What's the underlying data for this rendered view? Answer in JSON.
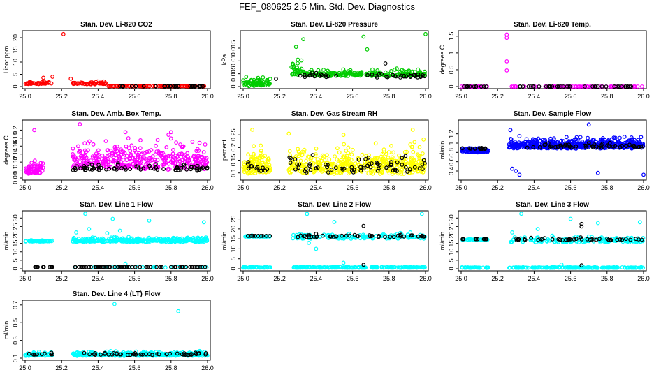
{
  "page_title": "FEF_080625  2.5 Min. Std. Dev. Diagnostics",
  "colors": {
    "red": "#ff0000",
    "green": "#00cc00",
    "magenta": "#ff00ff",
    "yellow": "#ffff00",
    "blue": "#0000ff",
    "cyan": "#00ffff",
    "black": "#000000"
  },
  "chart_data": [
    {
      "type": "scatter",
      "title": "Stan. Dev. Li-820 CO2",
      "ylabel": "Licor ppm",
      "xlim": [
        25.0,
        26.0
      ],
      "ylim": [
        0,
        22
      ],
      "xticks": [
        25.0,
        25.2,
        25.4,
        25.6,
        25.8,
        26.0
      ],
      "yticks": [
        0,
        5,
        10,
        15,
        20
      ],
      "series": [
        {
          "color": "#ff0000",
          "segments": [
            {
              "x0": 25.0,
              "x1": 25.15,
              "n": 40,
              "base": 1.0,
              "spread": 1.4
            },
            {
              "x0": 25.26,
              "x1": 25.45,
              "n": 45,
              "base": 0.9,
              "spread": 1.3
            },
            {
              "x0": 25.45,
              "x1": 26.0,
              "n": 110,
              "base": 0.1,
              "spread": 0.25
            }
          ],
          "points": [
            [
              25.21,
              21.5
            ],
            [
              25.25,
              3.2
            ],
            [
              25.15,
              4.0
            ],
            [
              25.1,
              3.6
            ]
          ]
        },
        {
          "color": "#000000",
          "segments": [
            {
              "x0": 25.5,
              "x1": 26.0,
              "n": 30,
              "base": 0.1,
              "spread": 0.1
            }
          ],
          "points": []
        }
      ]
    },
    {
      "type": "scatter",
      "title": "Stan. Dev. Li-820 Pressure",
      "ylabel": "kPa",
      "xlim": [
        25.0,
        26.0
      ],
      "ylim": [
        0,
        0.021
      ],
      "xticks": [
        25.0,
        25.2,
        25.4,
        25.6,
        25.8,
        26.0
      ],
      "yticks": [
        0.0,
        0.005,
        0.01,
        0.015
      ],
      "series": [
        {
          "color": "#00cc00",
          "segments": [
            {
              "x0": 25.0,
              "x1": 25.15,
              "n": 70,
              "base": 0.0,
              "spread": 0.005
            },
            {
              "x0": 25.26,
              "x1": 25.32,
              "n": 30,
              "base": 0.004,
              "spread": 0.008
            },
            {
              "x0": 25.32,
              "x1": 26.0,
              "n": 220,
              "base": 0.004,
              "spread": 0.0035
            }
          ],
          "points": [
            [
              26.0,
              0.0205
            ],
            [
              25.66,
              0.0195
            ],
            [
              25.33,
              0.0185
            ],
            [
              25.68,
              0.0145
            ],
            [
              25.29,
              0.0155
            ],
            [
              25.3,
              0.0105
            ]
          ]
        },
        {
          "color": "#000000",
          "segments": [
            {
              "x0": 25.3,
              "x1": 26.0,
              "n": 45,
              "base": 0.0035,
              "spread": 0.0025
            }
          ],
          "points": [
            [
              25.78,
              0.009
            ],
            [
              25.18,
              0.003
            ]
          ]
        }
      ]
    },
    {
      "type": "scatter",
      "title": "Stan. Dev. Li-820 Temp.",
      "ylabel": "degrees C",
      "xlim": [
        25.0,
        26.0
      ],
      "ylim": [
        0,
        1.6
      ],
      "xticks": [
        25.0,
        25.2,
        25.4,
        25.6,
        25.8,
        26.0
      ],
      "yticks": [
        0.0,
        0.5,
        1.0,
        1.5
      ],
      "series": [
        {
          "color": "#ff00ff",
          "segments": [
            {
              "x0": 25.0,
              "x1": 25.15,
              "n": 25,
              "base": 0.0,
              "spread": 0.0
            },
            {
              "x0": 25.27,
              "x1": 26.0,
              "n": 70,
              "base": 0.0,
              "spread": 0.0
            }
          ],
          "points": [
            [
              25.25,
              1.55
            ],
            [
              25.25,
              1.45
            ],
            [
              25.25,
              0.75
            ],
            [
              25.25,
              0.48
            ]
          ]
        },
        {
          "color": "#000000",
          "segments": [
            {
              "x0": 25.0,
              "x1": 25.15,
              "n": 12,
              "base": 0.0,
              "spread": 0.0
            },
            {
              "x0": 25.3,
              "x1": 26.0,
              "n": 40,
              "base": 0.0,
              "spread": 0.0
            }
          ],
          "points": []
        }
      ]
    },
    {
      "type": "scatter",
      "title": "Stan. Dev. Amb. Box Temp.",
      "ylabel": "degrees C",
      "xlim": [
        25.0,
        26.0
      ],
      "ylim": [
        0.08,
        0.22
      ],
      "xticks": [
        25.0,
        25.2,
        25.4,
        25.6,
        25.8,
        26.0
      ],
      "yticks": [
        0.08,
        0.1,
        0.12,
        0.14,
        0.16,
        0.18,
        0.2
      ],
      "series": [
        {
          "color": "#ff00ff",
          "segments": [
            {
              "x0": 25.0,
              "x1": 25.1,
              "n": 70,
              "base": 0.09,
              "spread": 0.045
            },
            {
              "x0": 25.26,
              "x1": 26.0,
              "n": 380,
              "base": 0.1,
              "spread": 0.095
            }
          ],
          "points": [
            [
              25.05,
              0.2
            ],
            [
              25.3,
              0.215
            ],
            [
              25.55,
              0.195
            ],
            [
              25.8,
              0.195
            ]
          ]
        },
        {
          "color": "#000000",
          "segments": [
            {
              "x0": 25.26,
              "x1": 26.0,
              "n": 75,
              "base": 0.098,
              "spread": 0.022
            }
          ],
          "points": []
        }
      ]
    },
    {
      "type": "scatter",
      "title": "Stan. Dev. Gas Stream RH",
      "ylabel": "percent",
      "xlim": [
        25.0,
        26.0
      ],
      "ylim": [
        0.08,
        0.3
      ],
      "xticks": [
        25.0,
        25.2,
        25.4,
        25.6,
        25.8,
        26.0
      ],
      "yticks": [
        0.1,
        0.15,
        0.2,
        0.25
      ],
      "series": [
        {
          "color": "#ffff00",
          "segments": [
            {
              "x0": 25.0,
              "x1": 25.15,
              "n": 120,
              "base": 0.095,
              "spread": 0.13
            },
            {
              "x0": 25.25,
              "x1": 26.0,
              "n": 450,
              "base": 0.095,
              "spread": 0.14
            }
          ],
          "points": [
            [
              25.05,
              0.27
            ],
            [
              25.93,
              0.27
            ],
            [
              25.25,
              0.255
            ],
            [
              25.55,
              0.25
            ]
          ]
        },
        {
          "color": "#000000",
          "segments": [
            {
              "x0": 25.0,
              "x1": 25.15,
              "n": 12,
              "base": 0.1,
              "spread": 0.06
            },
            {
              "x0": 25.25,
              "x1": 26.0,
              "n": 70,
              "base": 0.1,
              "spread": 0.09
            }
          ],
          "points": []
        }
      ]
    },
    {
      "type": "scatter",
      "title": "Stan. Dev. Sample Flow",
      "ylabel": "ml/min",
      "xlim": [
        25.0,
        26.0
      ],
      "ylim": [
        0.25,
        1.45
      ],
      "xticks": [
        25.0,
        25.2,
        25.4,
        25.6,
        25.8,
        26.0
      ],
      "yticks": [
        0.4,
        0.6,
        0.8,
        1.0,
        1.2
      ],
      "series": [
        {
          "color": "#0000ff",
          "segments": [
            {
              "x0": 25.0,
              "x1": 25.15,
              "n": 100,
              "base": 0.8,
              "spread": 0.13
            },
            {
              "x0": 25.26,
              "x1": 26.0,
              "n": 520,
              "base": 0.88,
              "spread": 0.3
            }
          ],
          "points": [
            [
              25.28,
              0.45
            ],
            [
              25.3,
              0.4
            ],
            [
              25.32,
              0.32
            ],
            [
              25.7,
              1.4
            ],
            [
              25.75,
              0.36
            ],
            [
              26.0,
              0.32
            ],
            [
              25.27,
              1.28
            ]
          ]
        },
        {
          "color": "#000000",
          "segments": [
            {
              "x0": 25.0,
              "x1": 25.15,
              "n": 12,
              "base": 0.86,
              "spread": 0.06
            },
            {
              "x0": 25.3,
              "x1": 26.0,
              "n": 55,
              "base": 0.9,
              "spread": 0.14
            }
          ],
          "points": []
        }
      ]
    },
    {
      "type": "scatter",
      "title": "Stan. Dev. Line 1 Flow",
      "ylabel": "ml/min",
      "xlim": [
        25.0,
        26.0
      ],
      "ylim": [
        0,
        33
      ],
      "xticks": [
        25.0,
        25.2,
        25.4,
        25.6,
        25.8,
        26.0
      ],
      "yticks": [
        0,
        5,
        10,
        15,
        20,
        25,
        30
      ],
      "series": [
        {
          "color": "#00ffff",
          "segments": [
            {
              "x0": 25.0,
              "x1": 25.15,
              "n": 60,
              "base": 16.0,
              "spread": 1.2
            },
            {
              "x0": 25.26,
              "x1": 26.0,
              "n": 340,
              "base": 15.8,
              "spread": 3.5
            },
            {
              "x0": 25.26,
              "x1": 26.0,
              "n": 30,
              "base": 0.7,
              "spread": 0.6
            }
          ],
          "points": [
            [
              25.33,
              32.5
            ],
            [
              25.48,
              29.5
            ],
            [
              25.68,
              28.5
            ],
            [
              25.98,
              27.5
            ],
            [
              25.52,
              22.5
            ],
            [
              25.45,
              21.0
            ],
            [
              25.35,
              23.5
            ],
            [
              25.28,
              21.5
            ],
            [
              25.55,
              3.0
            ]
          ]
        },
        {
          "color": "#000000",
          "segments": [
            {
              "x0": 25.0,
              "x1": 25.15,
              "n": 12,
              "base": 1.0,
              "spread": 0.0
            },
            {
              "x0": 25.26,
              "x1": 26.0,
              "n": 60,
              "base": 1.0,
              "spread": 0.0
            }
          ],
          "points": []
        }
      ]
    },
    {
      "type": "scatter",
      "title": "Stan. Dev. Line 2 Flow",
      "ylabel": "ml/min",
      "xlim": [
        25.0,
        26.0
      ],
      "ylim": [
        0,
        28
      ],
      "xticks": [
        25.0,
        25.2,
        25.4,
        25.6,
        25.8,
        26.0
      ],
      "yticks": [
        0,
        5,
        10,
        15,
        20,
        25
      ],
      "series": [
        {
          "color": "#00ffff",
          "segments": [
            {
              "x0": 25.0,
              "x1": 25.15,
              "n": 45,
              "base": 0.5,
              "spread": 0.6
            },
            {
              "x0": 25.26,
              "x1": 26.0,
              "n": 200,
              "base": 0.5,
              "spread": 0.6
            },
            {
              "x0": 25.0,
              "x1": 25.15,
              "n": 30,
              "base": 16.0,
              "spread": 0.8
            },
            {
              "x0": 25.27,
              "x1": 26.0,
              "n": 150,
              "base": 15.0,
              "spread": 3.5
            }
          ],
          "points": [
            [
              25.35,
              27.5
            ],
            [
              25.5,
              23.5
            ],
            [
              25.98,
              27.5
            ],
            [
              25.55,
              3.0
            ],
            [
              25.4,
              10.0
            ],
            [
              25.36,
              13.0
            ]
          ]
        },
        {
          "color": "#000000",
          "segments": [
            {
              "x0": 25.0,
              "x1": 25.15,
              "n": 10,
              "base": 16.5,
              "spread": 0.0
            },
            {
              "x0": 25.28,
              "x1": 26.0,
              "n": 45,
              "base": 15.8,
              "spread": 1.6
            }
          ],
          "points": [
            [
              25.66,
              21.5
            ],
            [
              25.66,
              2.0
            ],
            [
              25.4,
              17.5
            ]
          ]
        }
      ]
    },
    {
      "type": "scatter",
      "title": "Stan. Dev. Line 3 Flow",
      "ylabel": "ml/min",
      "xlim": [
        25.0,
        26.0
      ],
      "ylim": [
        0,
        33
      ],
      "xticks": [
        25.0,
        25.2,
        25.4,
        25.6,
        25.8,
        26.0
      ],
      "yticks": [
        0,
        5,
        10,
        15,
        20,
        25,
        30
      ],
      "series": [
        {
          "color": "#00ffff",
          "segments": [
            {
              "x0": 25.0,
              "x1": 25.15,
              "n": 40,
              "base": 0.5,
              "spread": 0.6
            },
            {
              "x0": 25.26,
              "x1": 26.0,
              "n": 200,
              "base": 0.5,
              "spread": 0.6
            },
            {
              "x0": 25.0,
              "x1": 25.15,
              "n": 30,
              "base": 17.0,
              "spread": 0.8
            },
            {
              "x0": 25.27,
              "x1": 26.0,
              "n": 160,
              "base": 15.5,
              "spread": 4.5
            }
          ],
          "points": [
            [
              25.33,
              32.5
            ],
            [
              25.6,
              29.5
            ],
            [
              25.75,
              27.0
            ],
            [
              25.98,
              27.5
            ],
            [
              25.28,
              21.5
            ],
            [
              25.55,
              2.5
            ],
            [
              25.42,
              23.5
            ]
          ]
        },
        {
          "color": "#000000",
          "segments": [
            {
              "x0": 25.0,
              "x1": 25.15,
              "n": 10,
              "base": 17.5,
              "spread": 0.0
            },
            {
              "x0": 25.28,
              "x1": 26.0,
              "n": 45,
              "base": 16.8,
              "spread": 2.0
            }
          ],
          "points": [
            [
              25.66,
              26.5
            ],
            [
              25.66,
              25.0
            ],
            [
              25.66,
              2.0
            ]
          ]
        }
      ]
    },
    {
      "type": "scatter",
      "title": "Stan. Dev. Line 4 (LT) Flow",
      "ylabel": "ml/min",
      "xlim": [
        25.0,
        26.0
      ],
      "ylim": [
        0.1,
        0.73
      ],
      "xticks": [
        25.0,
        25.2,
        25.4,
        25.6,
        25.8,
        26.0
      ],
      "yticks": [
        0.1,
        0.3,
        0.5,
        0.7
      ],
      "series": [
        {
          "color": "#00ffff",
          "segments": [
            {
              "x0": 25.0,
              "x1": 25.15,
              "n": 60,
              "base": 0.125,
              "spread": 0.06
            },
            {
              "x0": 25.26,
              "x1": 26.0,
              "n": 360,
              "base": 0.125,
              "spread": 0.06
            }
          ],
          "points": [
            [
              25.49,
              0.71
            ],
            [
              25.84,
              0.63
            ]
          ]
        },
        {
          "color": "#000000",
          "segments": [
            {
              "x0": 25.0,
              "x1": 25.15,
              "n": 10,
              "base": 0.135,
              "spread": 0.035
            },
            {
              "x0": 25.3,
              "x1": 26.0,
              "n": 50,
              "base": 0.135,
              "spread": 0.035
            }
          ],
          "points": []
        }
      ]
    }
  ]
}
